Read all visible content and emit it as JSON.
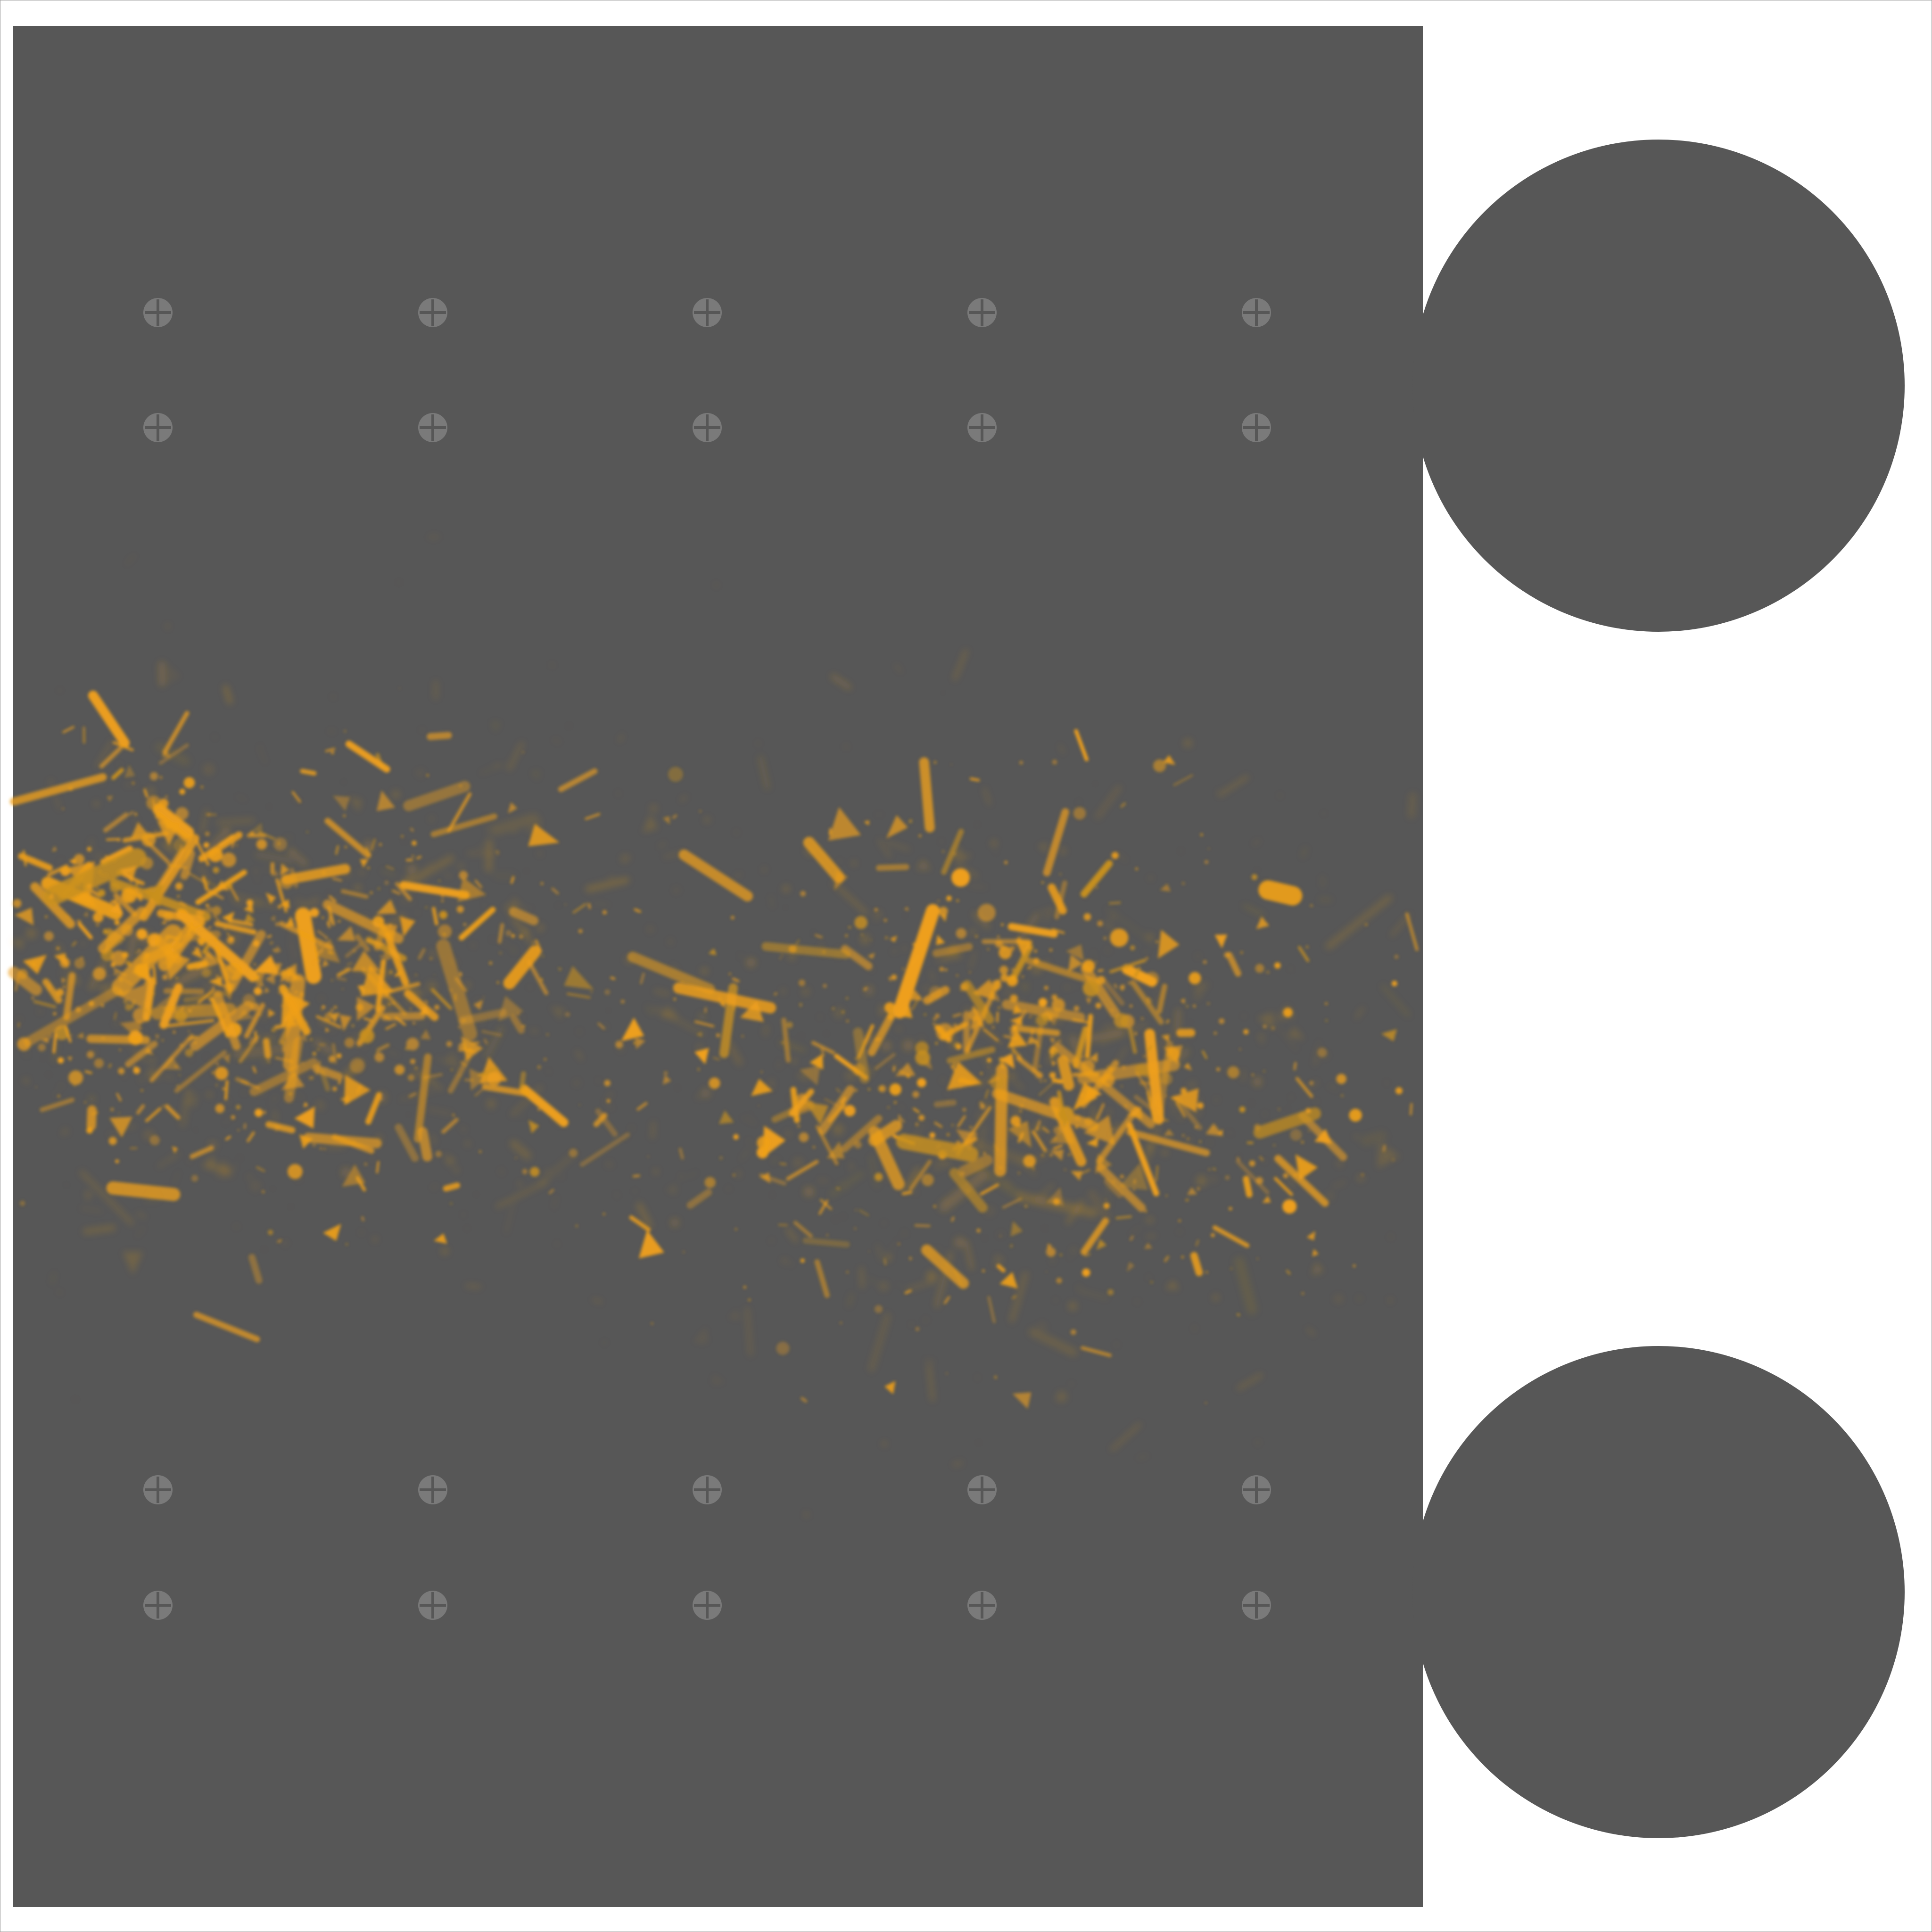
{
  "artwork": {
    "colors": {
      "page": "#ffffff",
      "frame": "#9a9a9a",
      "panel": "#575757",
      "circle": "#575757",
      "marker": "#7a7a7a",
      "marker_line": "#575757",
      "particle": "#f0a01a",
      "particle_dim": "#c8901f"
    },
    "icons": {
      "registration_marker": "crosshair-circle-icon",
      "circle_tab": "circle-shape"
    },
    "text": []
  }
}
